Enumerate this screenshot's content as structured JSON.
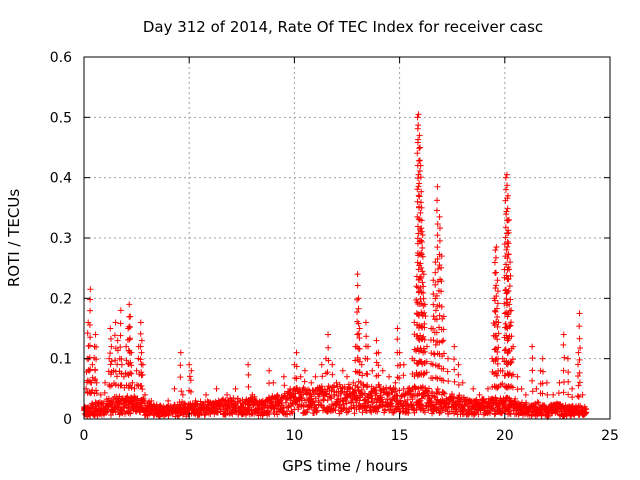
{
  "chart_data": {
    "type": "scatter",
    "title": "Day 312 of 2014, Rate Of TEC Index for receiver casc",
    "xlabel": "GPS time / hours",
    "ylabel": "ROTI / TECUs",
    "xlim": [
      0,
      25
    ],
    "ylim": [
      0,
      0.6
    ],
    "xticks": [
      0,
      5,
      10,
      15,
      20,
      25
    ],
    "xtick_labels": [
      "0",
      "5",
      "10",
      "15",
      "20",
      "25"
    ],
    "yticks": [
      0,
      0.1,
      0.2,
      0.3,
      0.4,
      0.5,
      0.6
    ],
    "ytick_labels": [
      "0",
      "0.1",
      "0.2",
      "0.3",
      "0.4",
      "0.5",
      "0.6"
    ],
    "grid": true,
    "marker": "+",
    "marker_color": "#ff0000",
    "series": [
      {
        "name": "ROTI",
        "points": [
          [
            0.05,
            0.02
          ],
          [
            0.1,
            0.05
          ],
          [
            0.15,
            0.1
          ],
          [
            0.2,
            0.16
          ],
          [
            0.25,
            0.08
          ],
          [
            0.3,
            0.215
          ],
          [
            0.35,
            0.06
          ],
          [
            0.4,
            0.09
          ],
          [
            0.5,
            0.12
          ],
          [
            0.55,
            0.14
          ],
          [
            0.6,
            0.06
          ],
          [
            0.8,
            0.04
          ],
          [
            1.0,
            0.06
          ],
          [
            1.2,
            0.1
          ],
          [
            1.25,
            0.15
          ],
          [
            1.3,
            0.12
          ],
          [
            1.4,
            0.08
          ],
          [
            1.5,
            0.16
          ],
          [
            1.6,
            0.13
          ],
          [
            1.7,
            0.1
          ],
          [
            1.75,
            0.18
          ],
          [
            1.8,
            0.09
          ],
          [
            1.9,
            0.07
          ],
          [
            2.0,
            0.12
          ],
          [
            2.1,
            0.15
          ],
          [
            2.15,
            0.19
          ],
          [
            2.2,
            0.17
          ],
          [
            2.25,
            0.11
          ],
          [
            2.3,
            0.06
          ],
          [
            2.4,
            0.05
          ],
          [
            2.5,
            0.08
          ],
          [
            2.6,
            0.12
          ],
          [
            2.7,
            0.16
          ],
          [
            2.75,
            0.13
          ],
          [
            2.8,
            0.09
          ],
          [
            2.9,
            0.04
          ],
          [
            3.2,
            0.03
          ],
          [
            3.6,
            0.02
          ],
          [
            4.0,
            0.03
          ],
          [
            4.3,
            0.05
          ],
          [
            4.6,
            0.11
          ],
          [
            4.7,
            0.04
          ],
          [
            5.0,
            0.09
          ],
          [
            5.1,
            0.08
          ],
          [
            5.3,
            0.03
          ],
          [
            5.8,
            0.04
          ],
          [
            6.3,
            0.05
          ],
          [
            6.8,
            0.04
          ],
          [
            7.2,
            0.05
          ],
          [
            7.8,
            0.09
          ],
          [
            8.0,
            0.04
          ],
          [
            8.5,
            0.03
          ],
          [
            8.8,
            0.08
          ],
          [
            9.0,
            0.06
          ],
          [
            9.5,
            0.07
          ],
          [
            9.8,
            0.05
          ],
          [
            10.0,
            0.09
          ],
          [
            10.1,
            0.11
          ],
          [
            10.3,
            0.07
          ],
          [
            10.5,
            0.08
          ],
          [
            10.8,
            0.06
          ],
          [
            11.0,
            0.07
          ],
          [
            11.3,
            0.09
          ],
          [
            11.5,
            0.1
          ],
          [
            11.6,
            0.14
          ],
          [
            11.8,
            0.09
          ],
          [
            12.0,
            0.06
          ],
          [
            12.3,
            0.08
          ],
          [
            12.5,
            0.07
          ],
          [
            12.8,
            0.06
          ],
          [
            12.9,
            0.12
          ],
          [
            13.0,
            0.24
          ],
          [
            13.05,
            0.2
          ],
          [
            13.1,
            0.15
          ],
          [
            13.2,
            0.09
          ],
          [
            13.4,
            0.16
          ],
          [
            13.5,
            0.12
          ],
          [
            13.7,
            0.08
          ],
          [
            13.9,
            0.13
          ],
          [
            14.0,
            0.11
          ],
          [
            14.2,
            0.08
          ],
          [
            14.5,
            0.07
          ],
          [
            14.8,
            0.06
          ],
          [
            14.9,
            0.15
          ],
          [
            15.0,
            0.11
          ],
          [
            15.2,
            0.09
          ],
          [
            15.4,
            0.05
          ],
          [
            15.6,
            0.1
          ],
          [
            15.7,
            0.16
          ],
          [
            15.8,
            0.22
          ],
          [
            15.85,
            0.5
          ],
          [
            15.9,
            0.505
          ],
          [
            15.95,
            0.47
          ],
          [
            16.0,
            0.42
          ],
          [
            16.05,
            0.35
          ],
          [
            16.1,
            0.305
          ],
          [
            16.15,
            0.24
          ],
          [
            16.2,
            0.19
          ],
          [
            16.3,
            0.12
          ],
          [
            16.5,
            0.15
          ],
          [
            16.6,
            0.23
          ],
          [
            16.7,
            0.26
          ],
          [
            16.8,
            0.385
          ],
          [
            16.9,
            0.335
          ],
          [
            17.0,
            0.27
          ],
          [
            17.1,
            0.17
          ],
          [
            17.3,
            0.1
          ],
          [
            17.6,
            0.12
          ],
          [
            17.8,
            0.09
          ],
          [
            18.0,
            0.06
          ],
          [
            18.5,
            0.05
          ],
          [
            18.8,
            0.04
          ],
          [
            19.2,
            0.05
          ],
          [
            19.4,
            0.1
          ],
          [
            19.5,
            0.2
          ],
          [
            19.55,
            0.28
          ],
          [
            19.6,
            0.285
          ],
          [
            19.65,
            0.23
          ],
          [
            19.7,
            0.16
          ],
          [
            19.8,
            0.08
          ],
          [
            19.9,
            0.1
          ],
          [
            20.0,
            0.29
          ],
          [
            20.05,
            0.4
          ],
          [
            20.1,
            0.405
          ],
          [
            20.15,
            0.37
          ],
          [
            20.2,
            0.33
          ],
          [
            20.25,
            0.26
          ],
          [
            20.3,
            0.18
          ],
          [
            20.4,
            0.12
          ],
          [
            20.6,
            0.07
          ],
          [
            20.8,
            0.05
          ],
          [
            21.0,
            0.04
          ],
          [
            21.3,
            0.12
          ],
          [
            21.5,
            0.05
          ],
          [
            21.7,
            0.08
          ],
          [
            21.8,
            0.1
          ],
          [
            22.0,
            0.06
          ],
          [
            22.3,
            0.04
          ],
          [
            22.6,
            0.06
          ],
          [
            22.8,
            0.14
          ],
          [
            23.0,
            0.1
          ],
          [
            23.2,
            0.05
          ],
          [
            23.5,
            0.11
          ],
          [
            23.55,
            0.175
          ],
          [
            23.7,
            0.04
          ],
          [
            23.8,
            0.02
          ]
        ]
      }
    ],
    "baseline_noise": [
      [
        0.0,
        0.02
      ],
      [
        0.5,
        0.025
      ],
      [
        1.0,
        0.03
      ],
      [
        1.5,
        0.035
      ],
      [
        2.0,
        0.035
      ],
      [
        2.5,
        0.035
      ],
      [
        3.0,
        0.03
      ],
      [
        3.5,
        0.02
      ],
      [
        4.0,
        0.02
      ],
      [
        4.5,
        0.025
      ],
      [
        5.0,
        0.025
      ],
      [
        5.5,
        0.025
      ],
      [
        6.0,
        0.03
      ],
      [
        6.5,
        0.03
      ],
      [
        7.0,
        0.035
      ],
      [
        7.5,
        0.03
      ],
      [
        8.0,
        0.035
      ],
      [
        8.5,
        0.03
      ],
      [
        9.0,
        0.035
      ],
      [
        9.5,
        0.04
      ],
      [
        10.0,
        0.05
      ],
      [
        10.5,
        0.05
      ],
      [
        11.0,
        0.05
      ],
      [
        11.5,
        0.055
      ],
      [
        12.0,
        0.055
      ],
      [
        12.5,
        0.055
      ],
      [
        13.0,
        0.06
      ],
      [
        13.5,
        0.055
      ],
      [
        14.0,
        0.055
      ],
      [
        14.5,
        0.05
      ],
      [
        15.0,
        0.05
      ],
      [
        15.5,
        0.05
      ],
      [
        16.0,
        0.055
      ],
      [
        16.5,
        0.05
      ],
      [
        17.0,
        0.045
      ],
      [
        17.5,
        0.04
      ],
      [
        18.0,
        0.035
      ],
      [
        18.5,
        0.03
      ],
      [
        19.0,
        0.03
      ],
      [
        19.5,
        0.035
      ],
      [
        20.0,
        0.035
      ],
      [
        20.5,
        0.03
      ],
      [
        21.0,
        0.025
      ],
      [
        21.5,
        0.025
      ],
      [
        22.0,
        0.02
      ],
      [
        22.5,
        0.025
      ],
      [
        23.0,
        0.02
      ],
      [
        23.5,
        0.02
      ],
      [
        23.9,
        0.015
      ]
    ]
  }
}
